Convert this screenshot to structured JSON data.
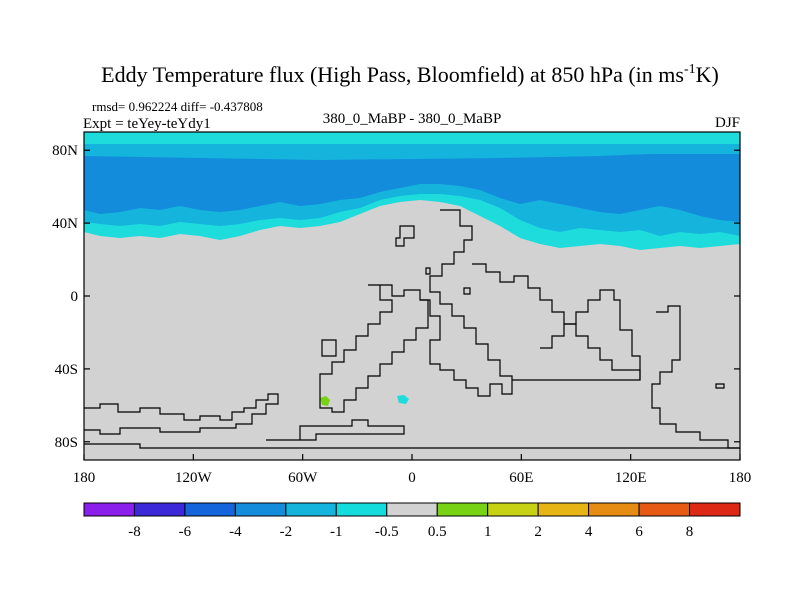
{
  "chart_data": {
    "type": "heatmap",
    "title": "Eddy Temperature flux (High Pass, Bloomfield) at 850 hPa (in ms",
    "title_superscript": "-1",
    "title_suffix": "K)",
    "stats": "rmsd= 0.962224 diff= -0.437808",
    "experiment": "Expt = teYey-teYdy1",
    "subtitle": "380_0_MaBP - 380_0_MaBP",
    "season": "DJF",
    "x_ticks": [
      "180",
      "120W",
      "60W",
      "0",
      "60E",
      "120E",
      "180"
    ],
    "x_values": [
      -180,
      -120,
      -60,
      0,
      60,
      120,
      180
    ],
    "y_ticks": [
      "80N",
      "40N",
      "0",
      "40S",
      "80S"
    ],
    "y_values": [
      80,
      40,
      0,
      -40,
      -80
    ],
    "xlim": [
      -180,
      180
    ],
    "ylim": [
      -90,
      90
    ],
    "colorbar_labels": [
      "-8",
      "-6",
      "-4",
      "-2",
      "-1",
      "-0.5",
      "0.5",
      "1",
      "2",
      "4",
      "6",
      "8"
    ],
    "colorbar_colors": [
      "#8a1eea",
      "#3c28d8",
      "#1464dc",
      "#148cdc",
      "#14b4dc",
      "#14dcdc",
      "#d2d2d2",
      "#78d214",
      "#c8d214",
      "#e6b414",
      "#e68c14",
      "#e65a14",
      "#dc2814"
    ],
    "bands": [
      {
        "level": "-1 to -0.5",
        "color": "#1edcdc"
      },
      {
        "level": "-2 to -1",
        "color": "#14b4dc"
      },
      {
        "level": "-4 to -2",
        "color": "#148cdc"
      },
      {
        "level": "-0.5 to 0.5",
        "color": "#d2d2d2"
      }
    ]
  }
}
